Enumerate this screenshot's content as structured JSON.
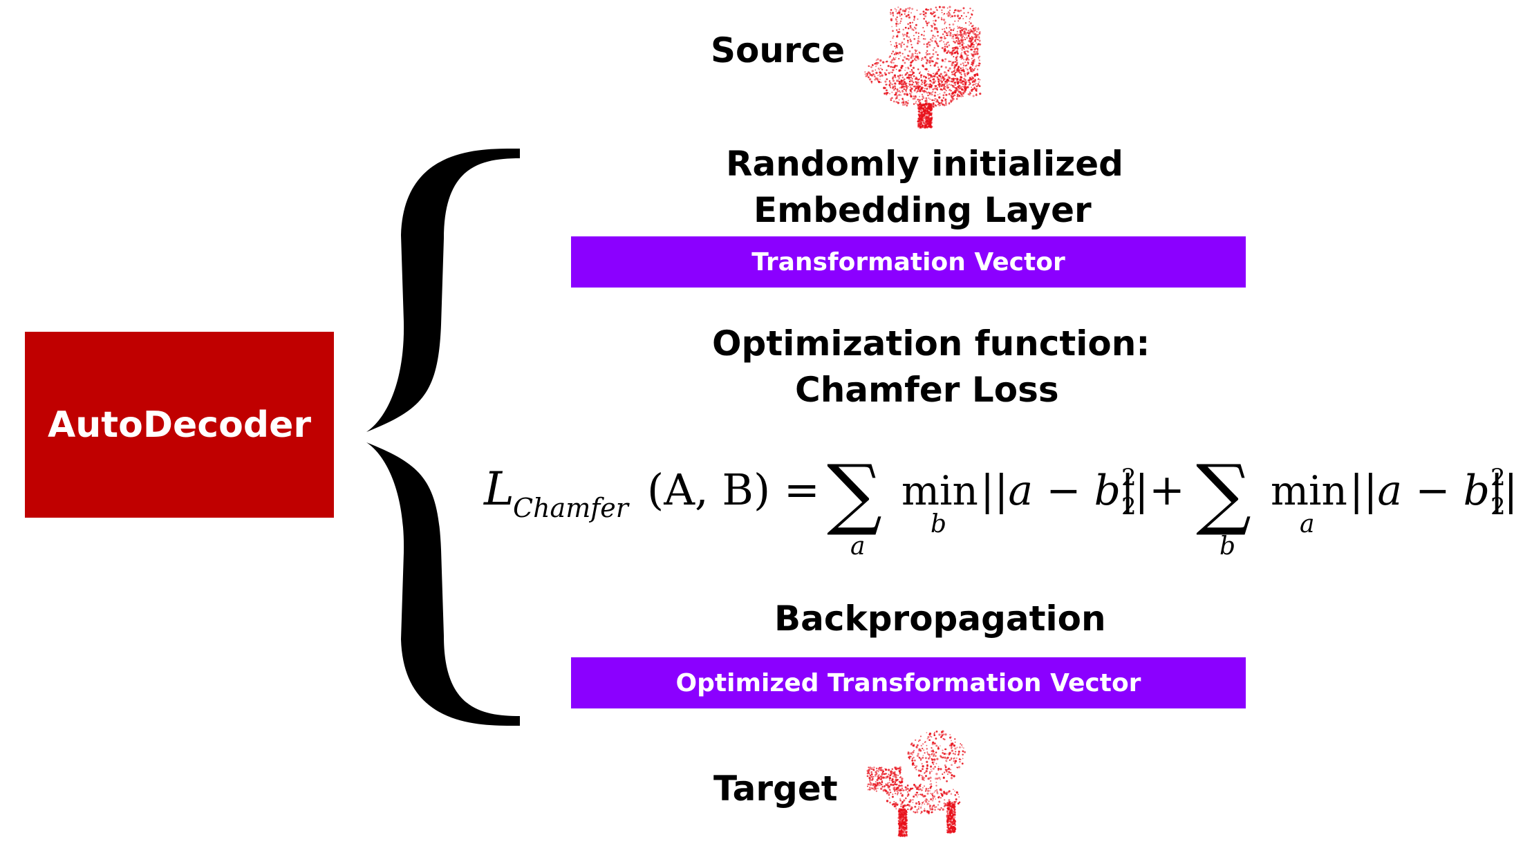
{
  "source": {
    "label": "Source",
    "icon": "red point-cloud chair (source shape)"
  },
  "target": {
    "label": "Target",
    "icon": "red point-cloud chair (target shape)"
  },
  "autodecoder": {
    "label": "AutoDecoder",
    "color": "#c00000"
  },
  "embedding": {
    "line1": "Randomly initialized",
    "line2": "Embedding Layer"
  },
  "transformation_vector": {
    "label": "Transformation Vector",
    "color": "#8b00ff"
  },
  "optimization": {
    "line1": "Optimization function:",
    "line2": "Chamfer Loss"
  },
  "equation": {
    "L": "L",
    "subscript": "Chamfer",
    "args": "(A, B) =",
    "sum": "∑",
    "sum1_index": "a",
    "min": "min",
    "min1_index": "b",
    "norm": "||a − b||",
    "sup": "2",
    "sub": "2",
    "plus": "+",
    "sum2_index": "b",
    "min2_index": "a"
  },
  "backprop": {
    "label": "Backpropagation"
  },
  "optimized_vector": {
    "label": "Optimized Transformation Vector",
    "color": "#8b00ff"
  },
  "colors": {
    "point_cloud": "#e8101a",
    "brace": "#000000"
  }
}
